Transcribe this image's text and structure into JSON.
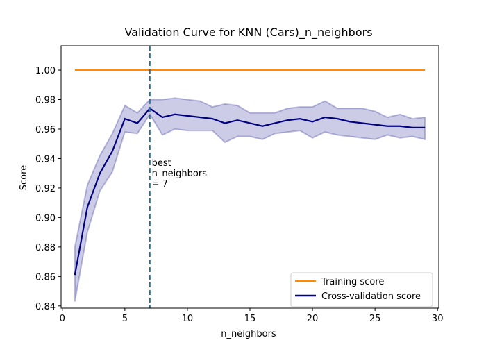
{
  "chart_data": {
    "type": "line",
    "title": "Validation Curve for KNN (Cars)_n_neighbors",
    "xlabel": "n_neighbors",
    "ylabel": "Score",
    "xlim": [
      -0.1,
      30.1
    ],
    "ylim": [
      0.8385,
      1.0165
    ],
    "xticks": [
      0,
      5,
      10,
      15,
      20,
      25,
      30
    ],
    "yticks": [
      0.84,
      0.86,
      0.88,
      0.9,
      0.92,
      0.94,
      0.96,
      0.98,
      1.0
    ],
    "ytick_labels": [
      "0.84",
      "0.86",
      "0.88",
      "0.90",
      "0.92",
      "0.94",
      "0.96",
      "0.98",
      "1.00"
    ],
    "x": [
      1,
      2,
      3,
      4,
      5,
      6,
      7,
      8,
      9,
      10,
      11,
      12,
      13,
      14,
      15,
      16,
      17,
      18,
      19,
      20,
      21,
      22,
      23,
      24,
      25,
      26,
      27,
      28,
      29
    ],
    "series": [
      {
        "name": "Training score",
        "color": "#ff8c00",
        "values": [
          1,
          1,
          1,
          1,
          1,
          1,
          1,
          1,
          1,
          1,
          1,
          1,
          1,
          1,
          1,
          1,
          1,
          1,
          1,
          1,
          1,
          1,
          1,
          1,
          1,
          1,
          1,
          1,
          1
        ]
      },
      {
        "name": "Cross-validation score",
        "color": "#000080",
        "values": [
          0.861,
          0.907,
          0.93,
          0.945,
          0.967,
          0.964,
          0.974,
          0.968,
          0.97,
          0.969,
          0.968,
          0.967,
          0.964,
          0.966,
          0.964,
          0.962,
          0.964,
          0.966,
          0.967,
          0.965,
          0.968,
          0.967,
          0.965,
          0.964,
          0.963,
          0.962,
          0.962,
          0.961,
          0.961
        ],
        "band_lower": [
          0.843,
          0.89,
          0.918,
          0.931,
          0.958,
          0.957,
          0.97,
          0.956,
          0.96,
          0.959,
          0.959,
          0.959,
          0.951,
          0.955,
          0.955,
          0.953,
          0.957,
          0.958,
          0.959,
          0.954,
          0.958,
          0.956,
          0.955,
          0.954,
          0.953,
          0.956,
          0.954,
          0.955,
          0.953
        ],
        "band_upper": [
          0.88,
          0.922,
          0.942,
          0.957,
          0.976,
          0.971,
          0.98,
          0.98,
          0.981,
          0.98,
          0.979,
          0.975,
          0.977,
          0.976,
          0.971,
          0.971,
          0.971,
          0.974,
          0.975,
          0.975,
          0.979,
          0.974,
          0.974,
          0.974,
          0.972,
          0.968,
          0.97,
          0.967,
          0.968
        ],
        "band_color": "#000080"
      }
    ],
    "vline": {
      "x": 7,
      "color": "#1f6fa0",
      "style": "dashed"
    },
    "annotation": {
      "lines": [
        "best",
        "n_neighbors",
        "= 7"
      ],
      "x": 7.15,
      "y": 0.935
    },
    "legend": {
      "placement": "lower-right"
    },
    "grid": false
  }
}
